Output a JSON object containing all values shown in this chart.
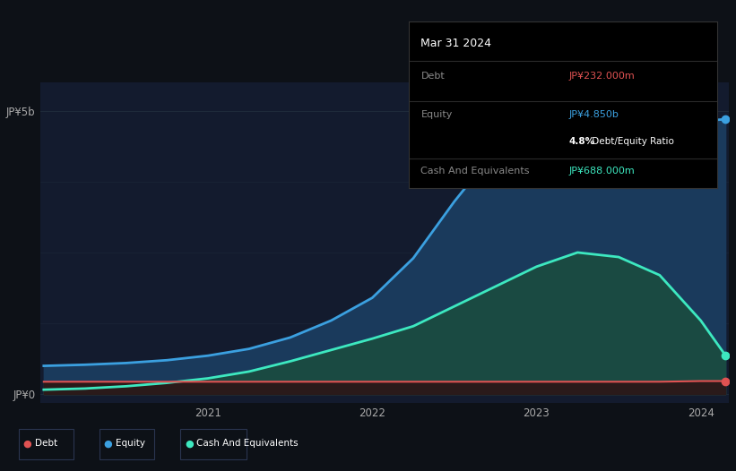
{
  "bg_color": "#0d1117",
  "plot_bg_color": "#131b2e",
  "ylabel_jp5b": "JP¥5b",
  "ylabel_jp0": "JP¥0",
  "x_ticks": [
    2021,
    2022,
    2023,
    2024
  ],
  "debt_color": "#e05252",
  "equity_color": "#3ba0e0",
  "cash_color": "#3de8c0",
  "equity_fill_color": "#1a3a5c",
  "cash_fill_color": "#1a4a42",
  "debt_fill_color": "#2a1a1a",
  "grid_color": "#1e2a3a",
  "legend_border": "#2a3550",
  "tooltip": {
    "title": "Mar 31 2024",
    "debt_label": "Debt",
    "debt_value": "JP¥232.000m",
    "debt_color": "#e05252",
    "equity_label": "Equity",
    "equity_value": "JP¥4.850b",
    "equity_color": "#3ba0e0",
    "ratio_text_bold": "4.8%",
    "ratio_text_rest": " Debt/Equity Ratio",
    "cash_label": "Cash And Equivalents",
    "cash_value": "JP¥688.000m",
    "cash_color": "#3de8c0"
  },
  "time": [
    2020.0,
    2020.25,
    2020.5,
    2020.75,
    2021.0,
    2021.25,
    2021.5,
    2021.75,
    2022.0,
    2022.25,
    2022.5,
    2022.75,
    2023.0,
    2023.25,
    2023.5,
    2023.75,
    2024.0,
    2024.15
  ],
  "debt": [
    0.22,
    0.22,
    0.22,
    0.22,
    0.22,
    0.22,
    0.22,
    0.22,
    0.22,
    0.22,
    0.22,
    0.22,
    0.22,
    0.22,
    0.22,
    0.22,
    0.232,
    0.232
  ],
  "equity": [
    0.5,
    0.52,
    0.55,
    0.6,
    0.68,
    0.8,
    1.0,
    1.3,
    1.7,
    2.4,
    3.4,
    4.3,
    4.75,
    4.85,
    4.88,
    4.85,
    4.82,
    4.85
  ],
  "cash": [
    0.08,
    0.1,
    0.14,
    0.2,
    0.28,
    0.4,
    0.58,
    0.78,
    0.98,
    1.2,
    1.55,
    1.9,
    2.25,
    2.5,
    2.42,
    2.1,
    1.3,
    0.688
  ]
}
